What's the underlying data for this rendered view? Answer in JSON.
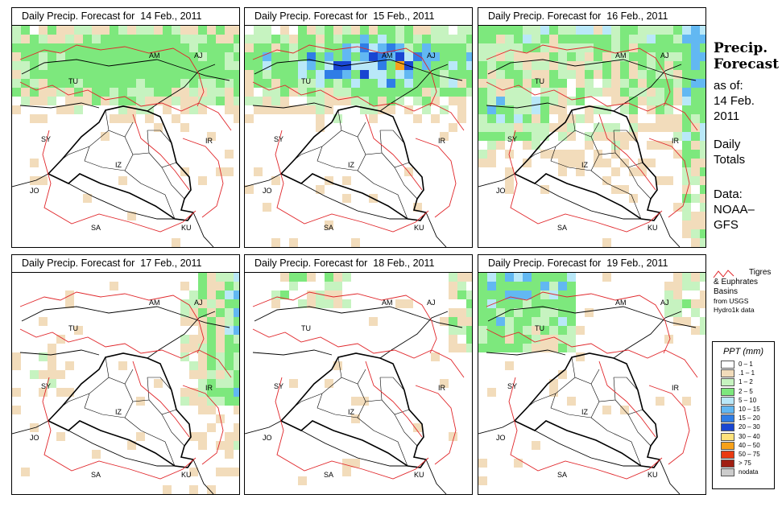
{
  "panels": [
    {
      "title": "Daily Precip. Forecast for  14 Feb., 2011",
      "intensity": [
        0,
        2,
        3
      ],
      "focus": "north"
    },
    {
      "title": "Daily Precip. Forecast for  15 Feb., 2011",
      "intensity": [
        1,
        5,
        9
      ],
      "focus": "north"
    },
    {
      "title": "Daily Precip. Forecast for  16 Feb., 2011",
      "intensity": [
        0,
        2,
        5
      ],
      "focus": "wide"
    },
    {
      "title": "Daily Precip. Forecast for  17 Feb., 2011",
      "intensity": [
        0,
        2,
        6
      ],
      "focus": "east"
    },
    {
      "title": "Daily Precip. Forecast for  18 Feb., 2011",
      "intensity": [
        0,
        1,
        2
      ],
      "focus": "sparse"
    },
    {
      "title": "Daily Precip. Forecast for  19 Feb., 2011",
      "intensity": [
        0,
        2,
        5
      ],
      "focus": "northwest"
    }
  ],
  "country_labels": [
    "AM",
    "AJ",
    "TU",
    "SY",
    "IR",
    "IZ",
    "JO",
    "SA",
    "KU"
  ],
  "side": {
    "title_line1": "Precip.",
    "title_line2": "Forecast",
    "asof": "as of:",
    "date1": "14 Feb.",
    "date2": "2011",
    "daily1": "Daily",
    "daily2": "Totals",
    "data1": "Data:",
    "data2": "NOAA–",
    "data3": "GFS"
  },
  "basin_legend": {
    "line1": "Tigres",
    "line2": "& Euphrates",
    "line3": "Basins",
    "line4": "from USGS",
    "line5": "Hydro1k data",
    "color": "#e0262a"
  },
  "ppt_legend": {
    "title": "PPT (mm)",
    "items": [
      {
        "label": "0 – 1",
        "color": "#ffffff"
      },
      {
        "label": ".1 – 1",
        "color": "#f2dcbb"
      },
      {
        "label": "1 – 2",
        "color": "#c6f3c0"
      },
      {
        "label": "2 – 5",
        "color": "#7de87d"
      },
      {
        "label": "5 – 10",
        "color": "#b9e8f8"
      },
      {
        "label": "10 – 15",
        "color": "#62b8f2"
      },
      {
        "label": "15 – 20",
        "color": "#2f7de6"
      },
      {
        "label": "20 – 30",
        "color": "#1946d2"
      },
      {
        "label": "30 – 40",
        "color": "#ffe27a"
      },
      {
        "label": "40 – 50",
        "color": "#f7a11a"
      },
      {
        "label": "50 – 75",
        "color": "#e93a12"
      },
      {
        "label": "> 75",
        "color": "#a01e12"
      },
      {
        "label": "nodata",
        "color": "#cccccc"
      }
    ]
  }
}
